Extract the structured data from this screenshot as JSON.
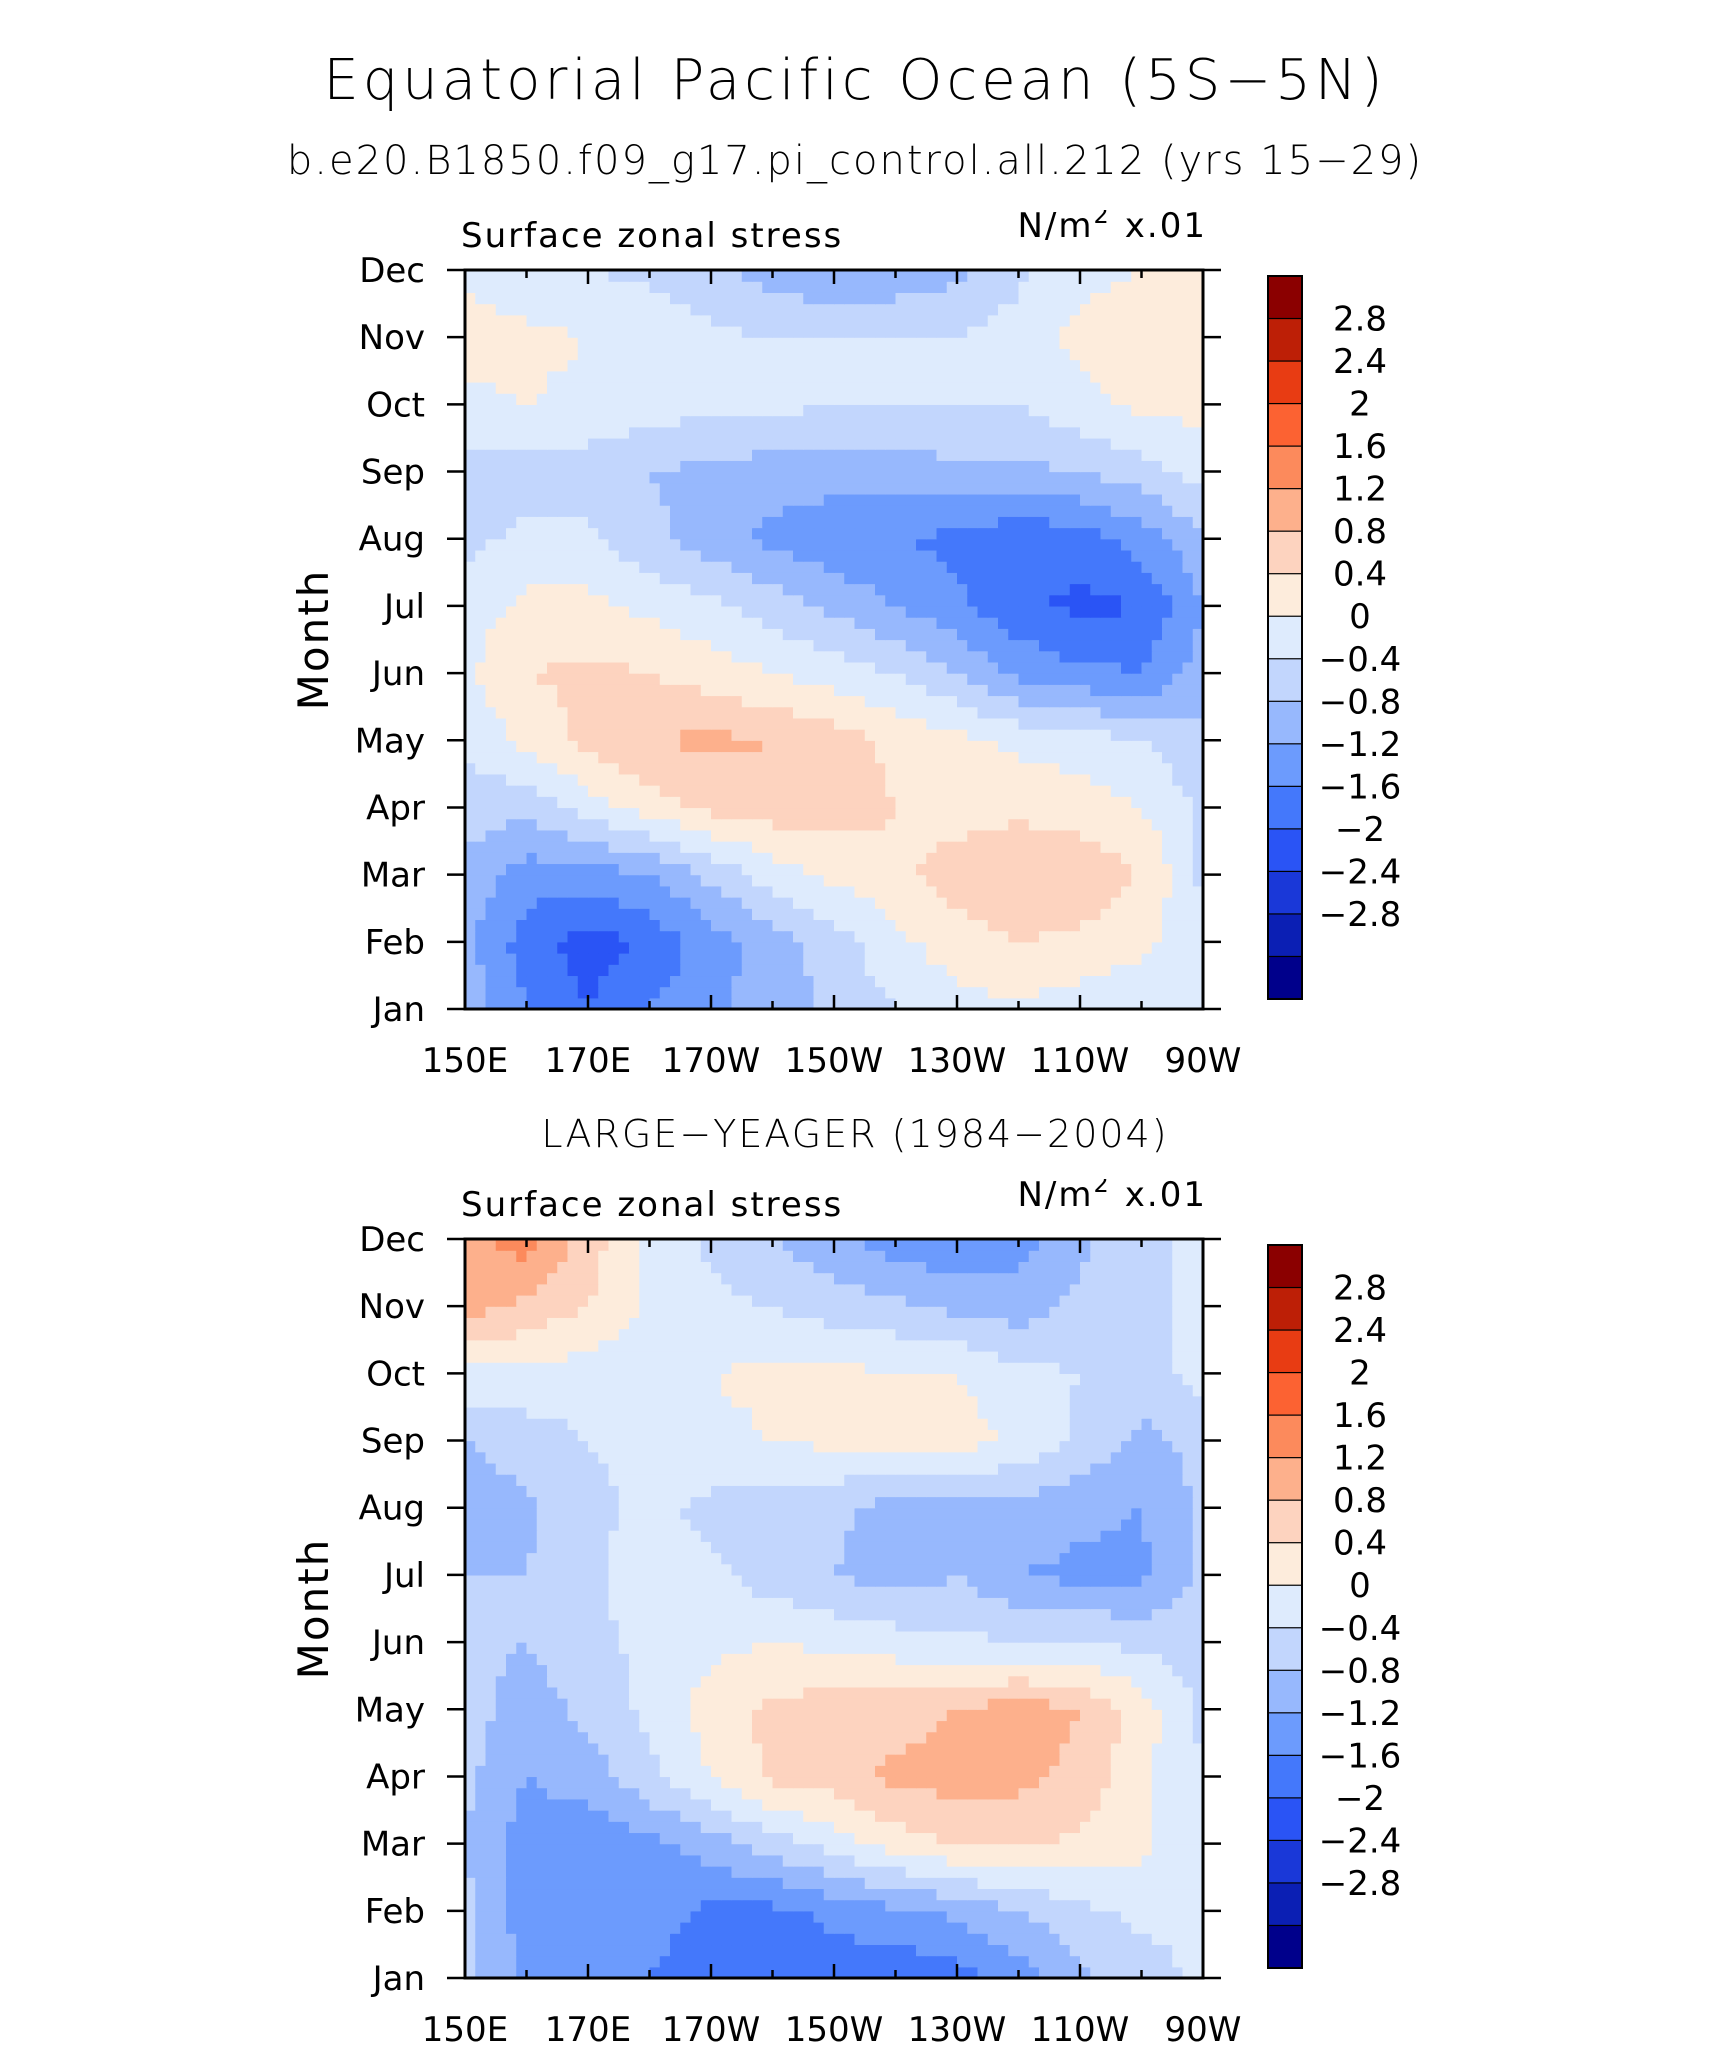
{
  "title": "Equatorial Pacific Ocean (5S−5N)",
  "subtitle": "b.e20.B1850.f09_g17.pi_control.all.212 (yrs 15−29)",
  "chart_data": [
    {
      "type": "heatmap",
      "panel_title": "",
      "left_label": "Surface zonal stress",
      "units_base": "N/m",
      "units_sup": "2",
      "units_scale": "x.01",
      "ylabel": "Month",
      "x_ticks": [
        "150E",
        "170E",
        "170W",
        "150W",
        "130W",
        "110W",
        "90W"
      ],
      "y_ticks": [
        "Jan",
        "Feb",
        "Mar",
        "Apr",
        "May",
        "Jun",
        "Jul",
        "Aug",
        "Sep",
        "Oct",
        "Nov",
        "Dec"
      ],
      "x_range_deg_east": [
        150,
        270
      ],
      "x_grid_deg_east": [
        150,
        160,
        170,
        180,
        190,
        200,
        210,
        220,
        230,
        240,
        250,
        260,
        270
      ],
      "values": [
        [
          -0.5,
          -1.2,
          -1.6,
          -1.2,
          -0.9,
          -0.6,
          -0.3,
          0.0,
          0.3,
          0.3,
          0.2,
          0.1,
          0.05
        ],
        [
          -0.7,
          -1.4,
          -1.8,
          -1.5,
          -1.0,
          -0.6,
          -0.2,
          0.3,
          0.6,
          0.8,
          0.7,
          0.5,
          0.1
        ],
        [
          -0.5,
          -1.0,
          -1.0,
          -0.8,
          -0.3,
          0.2,
          0.5,
          0.7,
          1.0,
          1.2,
          1.1,
          0.8,
          -0.1
        ],
        [
          -0.2,
          -0.3,
          0.2,
          0.6,
          0.9,
          1.0,
          1.0,
          0.8,
          0.6,
          0.7,
          0.6,
          0.4,
          -0.1
        ],
        [
          0.1,
          0.5,
          0.9,
          1.2,
          1.3,
          1.2,
          1.0,
          0.7,
          0.5,
          0.3,
          0.2,
          0.0,
          -0.3
        ],
        [
          0.3,
          0.8,
          0.9,
          0.8,
          0.6,
          0.4,
          0.2,
          0.0,
          -0.4,
          -0.9,
          -1.1,
          -1.2,
          -0.6
        ],
        [
          0.2,
          0.5,
          0.5,
          0.3,
          0.1,
          -0.2,
          -0.5,
          -0.8,
          -1.1,
          -1.5,
          -1.7,
          -1.6,
          -0.8
        ],
        [
          -0.1,
          0.1,
          0.1,
          -0.3,
          -0.6,
          -0.9,
          -1.1,
          -1.2,
          -1.3,
          -1.5,
          -1.4,
          -1.0,
          -0.5
        ],
        [
          -0.2,
          -0.2,
          -0.2,
          -0.4,
          -0.5,
          -0.6,
          -0.6,
          -0.6,
          -0.5,
          -0.5,
          -0.4,
          -0.2,
          0.2
        ],
        [
          0.3,
          0.4,
          0.3,
          0.2,
          0.1,
          0.1,
          0.0,
          0.0,
          0.0,
          0.0,
          0.3,
          0.5,
          0.5
        ],
        [
          0.6,
          0.5,
          0.4,
          0.3,
          0.1,
          0.0,
          0.0,
          0.0,
          0.0,
          0.2,
          0.5,
          0.6,
          0.5
        ],
        [
          0.3,
          0.1,
          0.0,
          -0.1,
          -0.3,
          -0.6,
          -0.8,
          -0.7,
          -0.5,
          -0.1,
          0.3,
          0.4,
          0.4
        ]
      ],
      "colorbar_labels": [
        "2.8",
        "2.4",
        "2",
        "1.6",
        "1.2",
        "0.8",
        "0.4",
        "0",
        "−0.4",
        "−0.8",
        "−1.2",
        "−1.6",
        "−2",
        "−2.4",
        "−2.8"
      ],
      "levels": [
        -2.8,
        -2.4,
        -2.0,
        -1.6,
        -1.2,
        -0.8,
        -0.4,
        0,
        0.4,
        0.8,
        1.2,
        1.6,
        2.0,
        2.4,
        2.8
      ]
    },
    {
      "type": "heatmap",
      "panel_title": "LARGE−YEAGER (1984−2004)",
      "left_label": "Surface zonal stress",
      "units_base": "N/m",
      "units_sup": "2",
      "units_scale": "x.01",
      "ylabel": "Month",
      "x_ticks": [
        "150E",
        "170E",
        "170W",
        "150W",
        "130W",
        "110W",
        "90W"
      ],
      "y_ticks": [
        "Jan",
        "Feb",
        "Mar",
        "Apr",
        "May",
        "Jun",
        "Jul",
        "Aug",
        "Sep",
        "Oct",
        "Nov",
        "Dec"
      ],
      "x_range_deg_east": [
        150,
        270
      ],
      "x_grid_deg_east": [
        150,
        160,
        170,
        180,
        190,
        200,
        210,
        220,
        230,
        240,
        250,
        260,
        270
      ],
      "values": [
        [
          -0.3,
          -0.9,
          -1.0,
          -1.2,
          -1.5,
          -1.6,
          -1.4,
          -1.5,
          -1.4,
          -1.0,
          -0.5,
          -0.2,
          0.1
        ],
        [
          -0.3,
          -1.0,
          -1.2,
          -1.0,
          -1.3,
          -1.3,
          -1.1,
          -0.9,
          -0.7,
          -0.4,
          -0.1,
          0.1,
          0.1
        ],
        [
          -0.4,
          -1.0,
          -1.1,
          -0.9,
          -0.6,
          -0.2,
          0.2,
          0.6,
          0.8,
          0.9,
          0.7,
          0.5,
          0.0
        ],
        [
          -0.3,
          -0.8,
          -0.6,
          -0.1,
          0.4,
          0.9,
          1.0,
          1.3,
          1.4,
          1.3,
          1.1,
          0.5,
          0.0
        ],
        [
          -0.2,
          -0.6,
          -0.3,
          0.1,
          0.6,
          0.9,
          1.0,
          1.0,
          1.2,
          1.4,
          1.2,
          0.6,
          -0.1
        ],
        [
          -0.3,
          -0.4,
          -0.1,
          0.1,
          0.3,
          0.4,
          0.3,
          0.2,
          0.1,
          0.0,
          0.0,
          -0.1,
          -0.2
        ],
        [
          -0.4,
          -0.4,
          -0.1,
          0.2,
          0.1,
          -0.2,
          -0.4,
          -0.6,
          -0.4,
          -0.8,
          -0.9,
          -0.9,
          -0.3
        ],
        [
          -0.6,
          -0.5,
          -0.1,
          0.1,
          -0.1,
          -0.2,
          -0.3,
          -0.6,
          -0.7,
          -0.5,
          -0.7,
          -0.8,
          -0.3
        ],
        [
          -0.4,
          -0.2,
          0.0,
          0.1,
          0.3,
          0.4,
          0.5,
          0.6,
          0.6,
          0.3,
          -0.1,
          -0.5,
          -0.3
        ],
        [
          0.3,
          0.3,
          0.2,
          0.1,
          0.4,
          0.5,
          0.5,
          0.4,
          0.4,
          0.1,
          0.0,
          -0.2,
          0.2
        ],
        [
          1.4,
          1.1,
          0.8,
          0.3,
          0.1,
          0.0,
          -0.2,
          -0.3,
          -0.5,
          -0.6,
          -0.3,
          -0.1,
          0.1
        ],
        [
          1.5,
          1.8,
          1.0,
          0.3,
          -0.1,
          -0.4,
          -0.7,
          -1.0,
          -1.2,
          -1.0,
          -0.5,
          -0.1,
          0.1
        ]
      ],
      "colorbar_labels": [
        "2.8",
        "2.4",
        "2",
        "1.6",
        "1.2",
        "0.8",
        "0.4",
        "0",
        "−0.4",
        "−0.8",
        "−1.2",
        "−1.6",
        "−2",
        "−2.4",
        "−2.8"
      ],
      "levels": [
        -2.8,
        -2.4,
        -2.0,
        -1.6,
        -1.2,
        -0.8,
        -0.4,
        0,
        0.4,
        0.8,
        1.2,
        1.6,
        2.0,
        2.4,
        2.8
      ]
    }
  ],
  "palette": {
    "bins_low_to_high": [
      "#00008b",
      "#0b1fb4",
      "#1a38d8",
      "#2a54f5",
      "#4478fb",
      "#6c9bfd",
      "#97b8fd",
      "#c2d6fd",
      "#deebfd",
      "#fdecdc",
      "#fdd3bf",
      "#fdb08c",
      "#fc8a5c",
      "#fc6232",
      "#e83c13",
      "#bd1f06",
      "#8b0000"
    ],
    "frame": "#000000"
  }
}
